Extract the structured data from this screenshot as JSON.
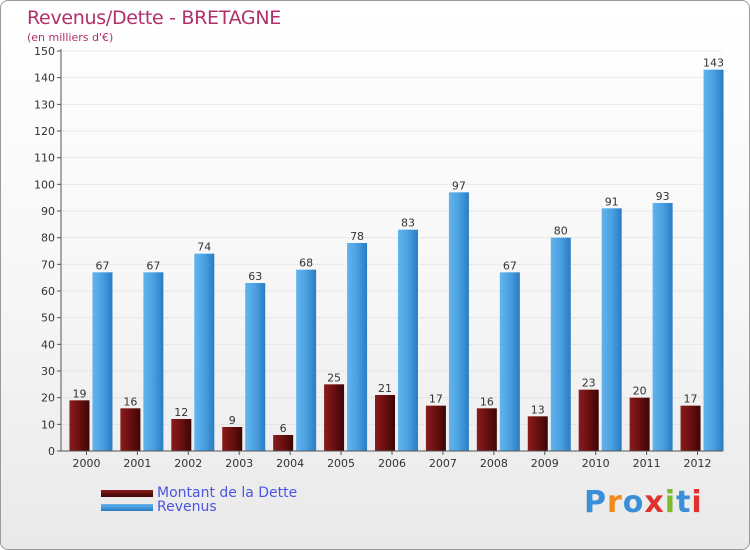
{
  "header": {
    "title": "Revenus/Dette - BRETAGNE",
    "subtitle": "(en milliers d'€)"
  },
  "chart_data": {
    "type": "bar",
    "title": "Revenus/Dette - BRETAGNE",
    "subtitle": "(en milliers d'€)",
    "xlabel": "",
    "ylabel": "",
    "ylim": [
      0,
      150
    ],
    "yticks": [
      0,
      10,
      20,
      30,
      40,
      50,
      60,
      70,
      80,
      90,
      100,
      110,
      120,
      130,
      140,
      150
    ],
    "grid": true,
    "legend_position": "bottom-left",
    "categories": [
      "2000",
      "2001",
      "2002",
      "2003",
      "2004",
      "2005",
      "2006",
      "2007",
      "2008",
      "2009",
      "2010",
      "2011",
      "2012"
    ],
    "series": [
      {
        "name": "Montant de la Dette",
        "color": "#7a1515",
        "values": [
          19,
          16,
          12,
          9,
          6,
          25,
          21,
          17,
          16,
          13,
          23,
          20,
          17
        ]
      },
      {
        "name": "Revenus",
        "color": "#4aa0e0",
        "values": [
          67,
          67,
          74,
          63,
          68,
          78,
          83,
          97,
          67,
          80,
          91,
          93,
          143
        ]
      }
    ]
  },
  "legend": {
    "items": [
      {
        "label": "Montant de la Dette",
        "color": "#6e1010"
      },
      {
        "label": "Revenus",
        "color": "#4aa0e0"
      }
    ]
  },
  "logo": {
    "text": "Proxiti",
    "letters": [
      "P",
      "r",
      "o",
      "x",
      "i",
      "t",
      "i"
    ],
    "colors": [
      "#3a8fd8",
      "#f08a1c",
      "#3a8fd8",
      "#e0322e",
      "#7dbb2a",
      "#3a8fd8",
      "#e0322e"
    ]
  }
}
